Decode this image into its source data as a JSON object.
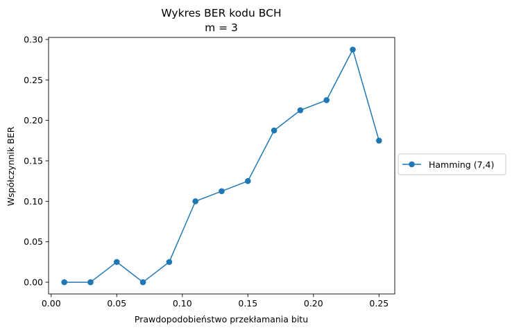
{
  "chart_data": {
    "type": "line",
    "title": "Wykres BER kodu BCH",
    "subtitle": "m = 3",
    "xlabel": "Prawdopodobieństwo przekłamania bitu",
    "ylabel": "Współczynnik BER",
    "xlim": [
      -0.002,
      0.262
    ],
    "ylim": [
      -0.0145,
      0.3025
    ],
    "x_ticks": [
      0.0,
      0.05,
      0.1,
      0.15,
      0.2,
      0.25
    ],
    "x_tick_labels": [
      "0.00",
      "0.05",
      "0.10",
      "0.15",
      "0.20",
      "0.25"
    ],
    "y_ticks": [
      0.0,
      0.05,
      0.1,
      0.15,
      0.2,
      0.25,
      0.3
    ],
    "y_tick_labels": [
      "0.00",
      "0.05",
      "0.10",
      "0.15",
      "0.20",
      "0.25",
      "0.30"
    ],
    "grid": false,
    "legend_position": "outside-right",
    "series": [
      {
        "name": "Hamming (7,4)",
        "color": "#1f77b4",
        "marker": "circle",
        "x": [
          0.01,
          0.03,
          0.05,
          0.07,
          0.09,
          0.11,
          0.13,
          0.15,
          0.17,
          0.19,
          0.21,
          0.23,
          0.25
        ],
        "y": [
          0.0,
          0.0,
          0.025,
          0.0,
          0.025,
          0.1,
          0.1125,
          0.125,
          0.1875,
          0.2125,
          0.225,
          0.2875,
          0.175
        ]
      }
    ]
  }
}
